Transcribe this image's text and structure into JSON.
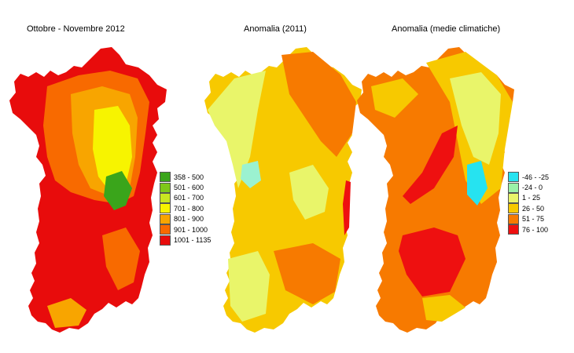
{
  "titles": [
    "Ottobre - Novembre 2012",
    "Anomalia (2011)",
    "Anomalia (medie climatiche)"
  ],
  "legend_left": [
    {
      "label": "358 - 500",
      "color": "#3aa51b"
    },
    {
      "label": "501 - 600",
      "color": "#7ec81a"
    },
    {
      "label": "601 - 700",
      "color": "#c8e621"
    },
    {
      "label": "701 - 800",
      "color": "#f7f400"
    },
    {
      "label": "801 - 900",
      "color": "#f8a500"
    },
    {
      "label": "901 - 1000",
      "color": "#f86a00"
    },
    {
      "label": "1001 - 1135",
      "color": "#e80c0c"
    }
  ],
  "legend_right": [
    {
      "label": "-46 - -25",
      "color": "#26e3f0"
    },
    {
      "label": "-24 - 0",
      "color": "#9bf2a8"
    },
    {
      "label": "1 - 25",
      "color": "#e9f56a"
    },
    {
      "label": "26 - 50",
      "color": "#f7c900"
    },
    {
      "label": "51 - 75",
      "color": "#f77a00"
    },
    {
      "label": "76 - 100",
      "color": "#ee1010"
    }
  ],
  "maps": [
    {
      "base": "#e80c0c",
      "mid": "#f86a00",
      "light": "#f8a500",
      "hi": "#f7f400",
      "peak": "#3aa51b"
    },
    {
      "base": "#f7c900",
      "mid": "#e9f56a",
      "light": "#c8ee6a",
      "hi": "#f77a00",
      "peak": "#9bf2d0"
    },
    {
      "base": "#f77a00",
      "mid": "#f7c900",
      "light": "#e9f56a",
      "hi": "#ee1010",
      "peak": "#26e3f0"
    }
  ]
}
